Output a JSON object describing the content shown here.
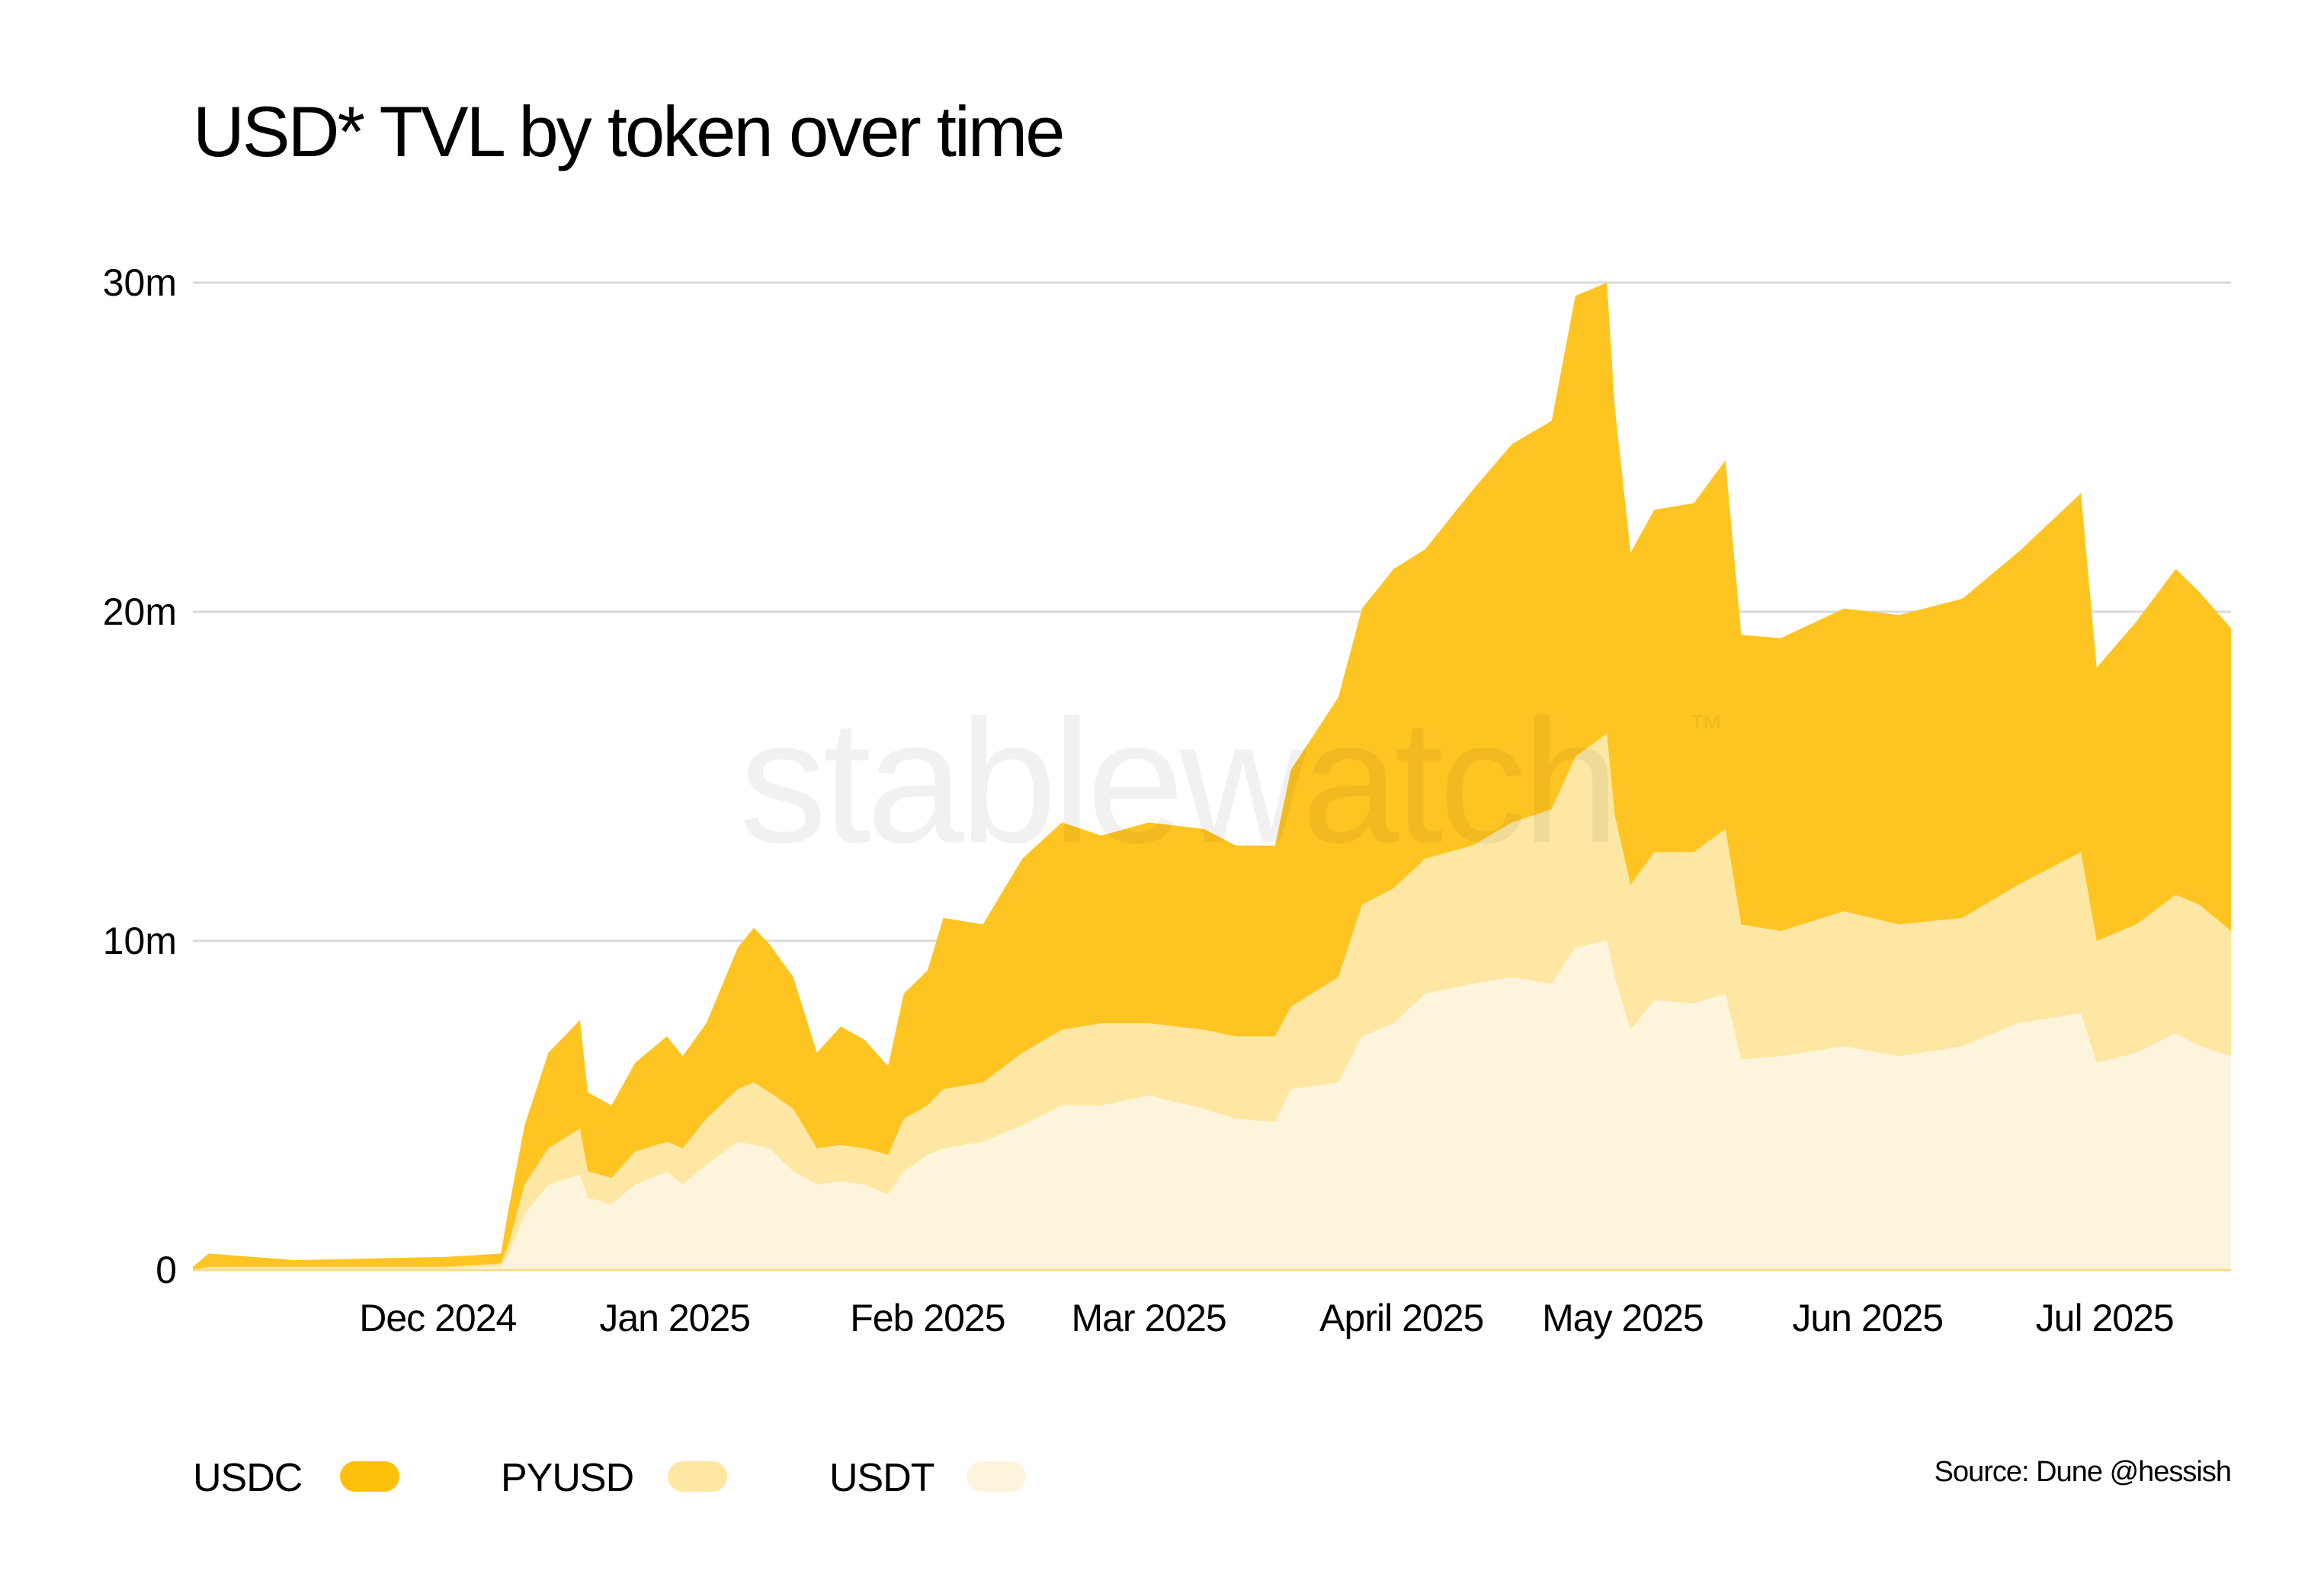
{
  "chart_data": {
    "type": "area",
    "stacked": true,
    "title": "USD* TVL by token over time",
    "xlabel": "",
    "ylabel": "",
    "x_unit": "days since 2024-11-01",
    "xlim": [
      0,
      258
    ],
    "ylim": [
      0,
      30
    ],
    "y_ticks": [
      {
        "value": 0,
        "label": "0"
      },
      {
        "value": 10,
        "label": "10m"
      },
      {
        "value": 20,
        "label": "20m"
      },
      {
        "value": 30,
        "label": "30m"
      }
    ],
    "x_ticks": [
      {
        "value": 31,
        "label": "Dec 2024"
      },
      {
        "value": 61,
        "label": "Jan 2025"
      },
      {
        "value": 93,
        "label": "Feb 2025"
      },
      {
        "value": 121,
        "label": "Mar 2025"
      },
      {
        "value": 153,
        "label": "April 2025"
      },
      {
        "value": 181,
        "label": "May 2025"
      },
      {
        "value": 212,
        "label": "Jun 2025"
      },
      {
        "value": 242,
        "label": "Jul 2025"
      }
    ],
    "grid": true,
    "legend_position": "bottom-left",
    "x": [
      0,
      2,
      13,
      32,
      39,
      40,
      42,
      45,
      49,
      50,
      53,
      56,
      60,
      62,
      65,
      69,
      71,
      73,
      76,
      79,
      82,
      85,
      88,
      90,
      93,
      95,
      100,
      105,
      110,
      115,
      121,
      128,
      132,
      137,
      139,
      145,
      148,
      152,
      156,
      162,
      167,
      172,
      175,
      179,
      180,
      182,
      185,
      190,
      194,
      196,
      201,
      209,
      216,
      224,
      231,
      239,
      241,
      246,
      251,
      254,
      258
    ],
    "series": [
      {
        "name": "USDT",
        "color": "#FDF4DC",
        "values": [
          0,
          0.05,
          0.05,
          0.05,
          0.1,
          0.5,
          1.7,
          2.6,
          2.9,
          2.2,
          2.0,
          2.6,
          3.0,
          2.6,
          3.2,
          3.9,
          3.8,
          3.7,
          3.0,
          2.6,
          2.7,
          2.6,
          2.3,
          3.0,
          3.5,
          3.7,
          3.9,
          4.4,
          5.0,
          5.0,
          5.3,
          4.9,
          4.6,
          4.5,
          5.5,
          5.7,
          7.1,
          7.5,
          8.4,
          8.7,
          8.9,
          8.7,
          9.8,
          10.0,
          8.9,
          7.3,
          8.2,
          8.1,
          8.4,
          6.4,
          6.5,
          6.8,
          6.5,
          6.8,
          7.5,
          7.8,
          6.3,
          6.6,
          7.2,
          6.8,
          6.5
        ]
      },
      {
        "name": "PYUSD",
        "color": "#FEE7A2",
        "values": [
          0,
          0.05,
          0.05,
          0.05,
          0.1,
          0.3,
          0.9,
          1.1,
          1.4,
          0.8,
          0.8,
          1.0,
          0.9,
          1.1,
          1.4,
          1.6,
          1.9,
          1.7,
          1.9,
          1.1,
          1.1,
          1.1,
          1.2,
          1.6,
          1.5,
          1.8,
          1.8,
          2.2,
          2.3,
          2.5,
          2.2,
          2.4,
          2.5,
          2.6,
          2.5,
          3.2,
          4.0,
          4.1,
          4.1,
          4.2,
          4.7,
          5.3,
          5.8,
          6.3,
          4.9,
          4.4,
          4.5,
          4.6,
          5.0,
          4.1,
          3.8,
          4.1,
          4.0,
          3.9,
          4.2,
          4.9,
          3.7,
          3.9,
          4.2,
          4.3,
          3.8
        ]
      },
      {
        "name": "USDC",
        "color": "#FEC522",
        "values": [
          0.1,
          0.4,
          0.2,
          0.3,
          0.3,
          1.1,
          1.8,
          2.9,
          3.3,
          2.4,
          2.2,
          2.7,
          3.2,
          2.8,
          2.9,
          4.3,
          4.7,
          4.5,
          4.0,
          2.9,
          3.6,
          3.3,
          2.7,
          3.8,
          4.1,
          5.2,
          4.8,
          5.9,
          6.3,
          5.7,
          6.1,
          6.1,
          5.8,
          5.8,
          7.2,
          8.5,
          9.0,
          9.7,
          9.4,
          10.8,
          11.5,
          11.8,
          14.0,
          13.7,
          12.4,
          10.1,
          10.4,
          10.6,
          11.2,
          8.8,
          8.9,
          9.2,
          9.4,
          9.7,
          10.1,
          10.9,
          8.3,
          9.2,
          9.9,
          9.5,
          9.2
        ]
      }
    ],
    "legend": [
      {
        "label": "USDC",
        "color": "#FEC10A"
      },
      {
        "label": "PYUSD",
        "color": "#FEE7A2"
      },
      {
        "label": "USDT",
        "color": "#FDF4DC"
      }
    ],
    "source": "Source: Dune @hessish",
    "watermark": "stablewatch",
    "watermark_mark": "™"
  }
}
